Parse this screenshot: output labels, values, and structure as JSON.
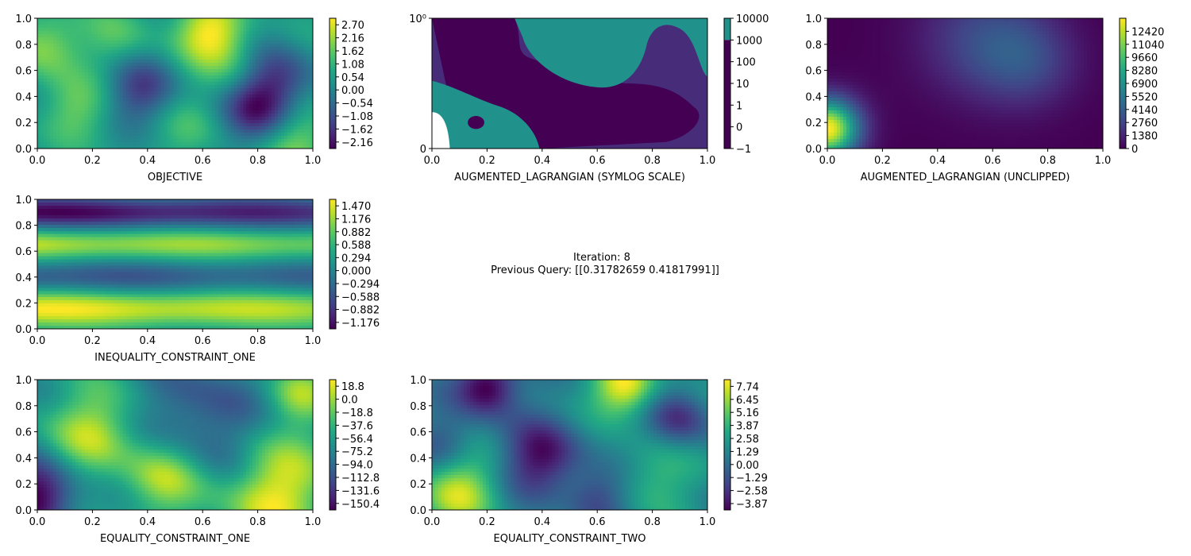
{
  "chart_data": [
    {
      "id": "objective",
      "type": "heatmap",
      "xlabel": "OBJECTIVE",
      "xticks": [
        "0.0",
        "0.2",
        "0.4",
        "0.6",
        "0.8",
        "1.0"
      ],
      "yticks": [
        "0.0",
        "0.2",
        "0.4",
        "0.6",
        "0.8",
        "1.0"
      ],
      "xlim": [
        0,
        1
      ],
      "ylim": [
        0,
        1
      ],
      "colorbar": {
        "ticks": [
          "2.70",
          "2.16",
          "1.62",
          "1.08",
          "0.54",
          "0.00",
          "−0.54",
          "−1.08",
          "−1.62",
          "−2.16"
        ],
        "range": [
          -2.43,
          2.97
        ]
      },
      "blobs": [
        {
          "x": 0.63,
          "y": 0.9,
          "v": 1.0
        },
        {
          "x": 0.02,
          "y": 0.8,
          "v": 0.7
        },
        {
          "x": 0.15,
          "y": 0.3,
          "v": 0.5
        },
        {
          "x": 0.38,
          "y": 0.45,
          "v": -0.8
        },
        {
          "x": 0.8,
          "y": 0.3,
          "v": -1.0
        },
        {
          "x": 0.88,
          "y": 0.55,
          "v": -0.7
        },
        {
          "x": 0.3,
          "y": 0.85,
          "v": 0.4
        },
        {
          "x": 0.95,
          "y": 0.05,
          "v": 0.6
        },
        {
          "x": 0.55,
          "y": 0.15,
          "v": 0.3
        },
        {
          "x": 0.7,
          "y": 0.6,
          "v": 0.3
        }
      ]
    },
    {
      "id": "aug-lagrangian-symlog",
      "type": "heatmap",
      "xlabel": "AUGMENTED_LAGRANGIAN (SYMLOG SCALE)",
      "xticks": [
        "0.0",
        "0.2",
        "0.4",
        "0.6",
        "0.8",
        "1.0"
      ],
      "yticks": [
        "0",
        "10⁰"
      ],
      "ylim": [
        0,
        1
      ],
      "scale": "symlog",
      "colorbar": {
        "ticks": [
          "10000",
          "1000",
          "100",
          "10",
          "1",
          "0",
          "−1"
        ],
        "levels": [
          "dark",
          "mid",
          "teal"
        ]
      },
      "colors": {
        "dark": "#440154",
        "mid": "#472c7a",
        "teal": "#21918c"
      }
    },
    {
      "id": "aug-lagrangian-unclipped",
      "type": "heatmap",
      "xlabel": "AUGMENTED_LAGRANGIAN (UNCLIPPED)",
      "xticks": [
        "0.0",
        "0.2",
        "0.4",
        "0.6",
        "0.8",
        "1.0"
      ],
      "yticks": [
        "0.0",
        "0.2",
        "0.4",
        "0.6",
        "0.8",
        "1.0"
      ],
      "colorbar": {
        "ticks": [
          "12420",
          "11040",
          "9660",
          "8280",
          "6900",
          "5520",
          "4140",
          "2760",
          "1380",
          "0"
        ],
        "range": [
          0,
          13800
        ]
      },
      "blobs": [
        {
          "x": 0.0,
          "y": 0.15,
          "v": 1.0,
          "s": 0.1
        },
        {
          "x": 0.55,
          "y": 0.85,
          "v": 0.35,
          "s": 0.2
        },
        {
          "x": 0.75,
          "y": 0.65,
          "v": 0.25,
          "s": 0.15
        }
      ]
    },
    {
      "id": "ineq-constraint-one",
      "type": "heatmap",
      "xlabel": "INEQUALITY_CONSTRAINT_ONE",
      "xticks": [
        "0.0",
        "0.2",
        "0.4",
        "0.6",
        "0.8",
        "1.0"
      ],
      "yticks": [
        "0.0",
        "0.2",
        "0.4",
        "0.6",
        "0.8",
        "1.0"
      ],
      "colorbar": {
        "ticks": [
          "1.470",
          "1.176",
          "0.882",
          "0.588",
          "0.294",
          "0.000",
          "−0.294",
          "−0.588",
          "−0.882",
          "−1.176"
        ],
        "range": [
          -1.323,
          1.617
        ]
      },
      "bands": [
        {
          "y": 0.15,
          "v": 1.0,
          "w": 0.1
        },
        {
          "y": 0.65,
          "v": 0.8,
          "w": 0.08
        },
        {
          "y": 0.9,
          "v": -1.0,
          "w": 0.08
        },
        {
          "y": 0.4,
          "v": -0.5,
          "w": 0.08
        }
      ]
    },
    {
      "id": "eq-constraint-one",
      "type": "heatmap",
      "xlabel": "EQUALITY_CONSTRAINT_ONE",
      "xticks": [
        "0.0",
        "0.2",
        "0.4",
        "0.6",
        "0.8",
        "1.0"
      ],
      "yticks": [
        "0.0",
        "0.2",
        "0.4",
        "0.6",
        "0.8",
        "1.0"
      ],
      "colorbar": {
        "ticks": [
          "18.8",
          "0.0",
          "−18.8",
          "−37.6",
          "−56.4",
          "−75.2",
          "−94.0",
          "−112.8",
          "−131.6",
          "−150.4"
        ],
        "range": [
          -159.8,
          28.2
        ]
      },
      "blobs": [
        {
          "x": 0.0,
          "y": 0.1,
          "v": -1.0,
          "s": 0.1
        },
        {
          "x": 0.85,
          "y": 0.15,
          "v": 0.8,
          "s": 0.15
        },
        {
          "x": 0.45,
          "y": 0.25,
          "v": 0.6,
          "s": 0.1
        },
        {
          "x": 0.2,
          "y": 0.6,
          "v": 0.6,
          "s": 0.12
        },
        {
          "x": 0.6,
          "y": 0.75,
          "v": -0.5,
          "s": 0.15
        },
        {
          "x": 0.95,
          "y": 0.9,
          "v": 0.5,
          "s": 0.08
        },
        {
          "x": 0.7,
          "y": 0.35,
          "v": -0.2,
          "s": 0.1
        }
      ]
    },
    {
      "id": "eq-constraint-two",
      "type": "heatmap",
      "xlabel": "EQUALITY_CONSTRAINT_TWO",
      "xticks": [
        "0.0",
        "0.2",
        "0.4",
        "0.6",
        "0.8",
        "1.0"
      ],
      "yticks": [
        "0.0",
        "0.2",
        "0.4",
        "0.6",
        "0.8",
        "1.0"
      ],
      "colorbar": {
        "ticks": [
          "7.74",
          "6.45",
          "5.16",
          "3.87",
          "2.58",
          "1.29",
          "0.00",
          "−1.29",
          "−2.58",
          "−3.87"
        ],
        "range": [
          -4.5,
          8.4
        ]
      },
      "blobs": [
        {
          "x": 0.7,
          "y": 0.95,
          "v": 1.0,
          "s": 0.08
        },
        {
          "x": 0.2,
          "y": 0.95,
          "v": -1.0,
          "s": 0.08
        },
        {
          "x": 0.4,
          "y": 0.4,
          "v": -0.8,
          "s": 0.1
        },
        {
          "x": 0.1,
          "y": 0.15,
          "v": 0.8,
          "s": 0.1
        },
        {
          "x": 0.8,
          "y": 0.25,
          "v": 0.4,
          "s": 0.1
        },
        {
          "x": 0.9,
          "y": 0.7,
          "v": -0.6,
          "s": 0.08
        },
        {
          "x": 0.6,
          "y": 0.1,
          "v": -0.5,
          "s": 0.08
        },
        {
          "x": 0.05,
          "y": 0.5,
          "v": -0.4,
          "s": 0.08
        }
      ]
    }
  ],
  "iteration_text": {
    "line1": "Iteration: 8",
    "line2": " Previous Query: [[0.31782659 0.41817991]]"
  }
}
